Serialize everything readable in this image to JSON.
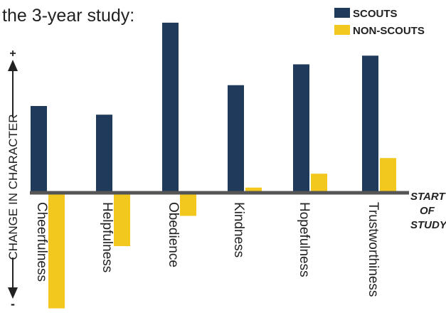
{
  "chart_data": {
    "type": "bar",
    "title": "the 3-year study:",
    "ylabel": "CHANGE IN CHARACTER",
    "y_plus_label": "+",
    "y_minus_label": "-",
    "baseline_label": [
      "START",
      "OF",
      "STUDY"
    ],
    "categories": [
      "Cheerfulness",
      "Helpfulness",
      "Obedience",
      "Kindness",
      "Hopefulness",
      "Trustworthiness"
    ],
    "series": [
      {
        "name": "SCOUTS",
        "color": "#1f3a5a",
        "values": [
          5.0,
          4.5,
          9.8,
          6.2,
          7.4,
          7.9
        ]
      },
      {
        "name": "NON-SCOUTS",
        "color": "#f2c81e",
        "values": [
          -6.5,
          -3.0,
          -1.3,
          0.3,
          1.1,
          2.0
        ]
      }
    ],
    "ylim": [
      -6.6,
      10.0
    ],
    "grid": false,
    "legend_position": "top-right",
    "baseline_color": "#555555"
  }
}
